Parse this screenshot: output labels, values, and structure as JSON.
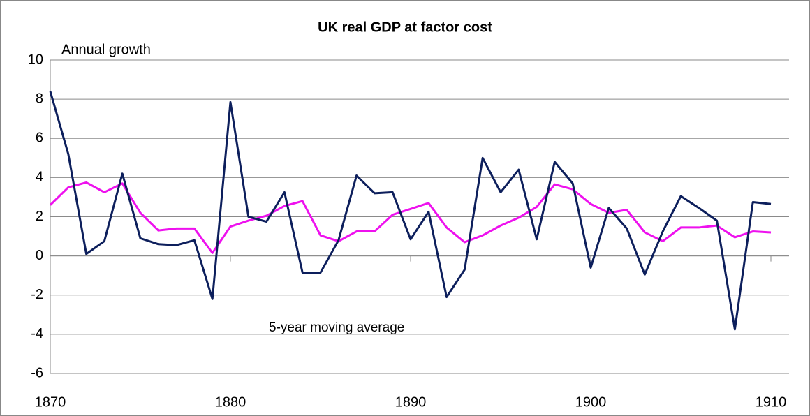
{
  "chart_data": {
    "type": "line",
    "title": "UK real GDP at factor cost",
    "x": [
      1870,
      1871,
      1872,
      1873,
      1874,
      1875,
      1876,
      1877,
      1878,
      1879,
      1880,
      1881,
      1882,
      1883,
      1884,
      1885,
      1886,
      1887,
      1888,
      1889,
      1890,
      1891,
      1892,
      1893,
      1894,
      1895,
      1896,
      1897,
      1898,
      1899,
      1900,
      1901,
      1902,
      1903,
      1904,
      1905,
      1906,
      1907,
      1908,
      1909,
      1910
    ],
    "series": [
      {
        "name": "Annual growth",
        "color": "#0d1f5c",
        "values": [
          8.4,
          5.2,
          0.1,
          0.75,
          4.2,
          0.9,
          0.6,
          0.55,
          0.8,
          -2.2,
          7.85,
          2.0,
          1.75,
          3.25,
          -0.85,
          -0.85,
          0.8,
          4.1,
          3.2,
          3.25,
          0.85,
          2.25,
          -2.1,
          -0.7,
          5.0,
          3.25,
          4.4,
          0.85,
          4.8,
          3.7,
          -0.6,
          2.45,
          1.4,
          -0.95,
          1.25,
          3.05,
          2.45,
          1.8,
          -3.75,
          2.75,
          2.65
        ]
      },
      {
        "name": "5-year moving average",
        "color": "#ee11ee",
        "values": [
          2.6,
          3.5,
          3.75,
          3.25,
          3.7,
          2.2,
          1.3,
          1.4,
          1.4,
          0.15,
          1.5,
          1.8,
          2.05,
          2.55,
          2.8,
          1.05,
          0.75,
          1.25,
          1.25,
          2.1,
          2.4,
          2.7,
          1.45,
          0.7,
          1.05,
          1.55,
          1.95,
          2.5,
          3.65,
          3.4,
          2.65,
          2.2,
          2.35,
          1.2,
          0.75,
          1.45,
          1.45,
          1.55,
          0.95,
          1.25,
          1.2
        ]
      }
    ],
    "xlim": [
      1870,
      1910
    ],
    "xticks": [
      1870,
      1880,
      1890,
      1900,
      1910
    ],
    "ylim": [
      -6,
      10
    ],
    "yticks": [
      -6,
      -4,
      -2,
      0,
      2,
      4,
      6,
      8,
      10
    ],
    "grid": true
  }
}
